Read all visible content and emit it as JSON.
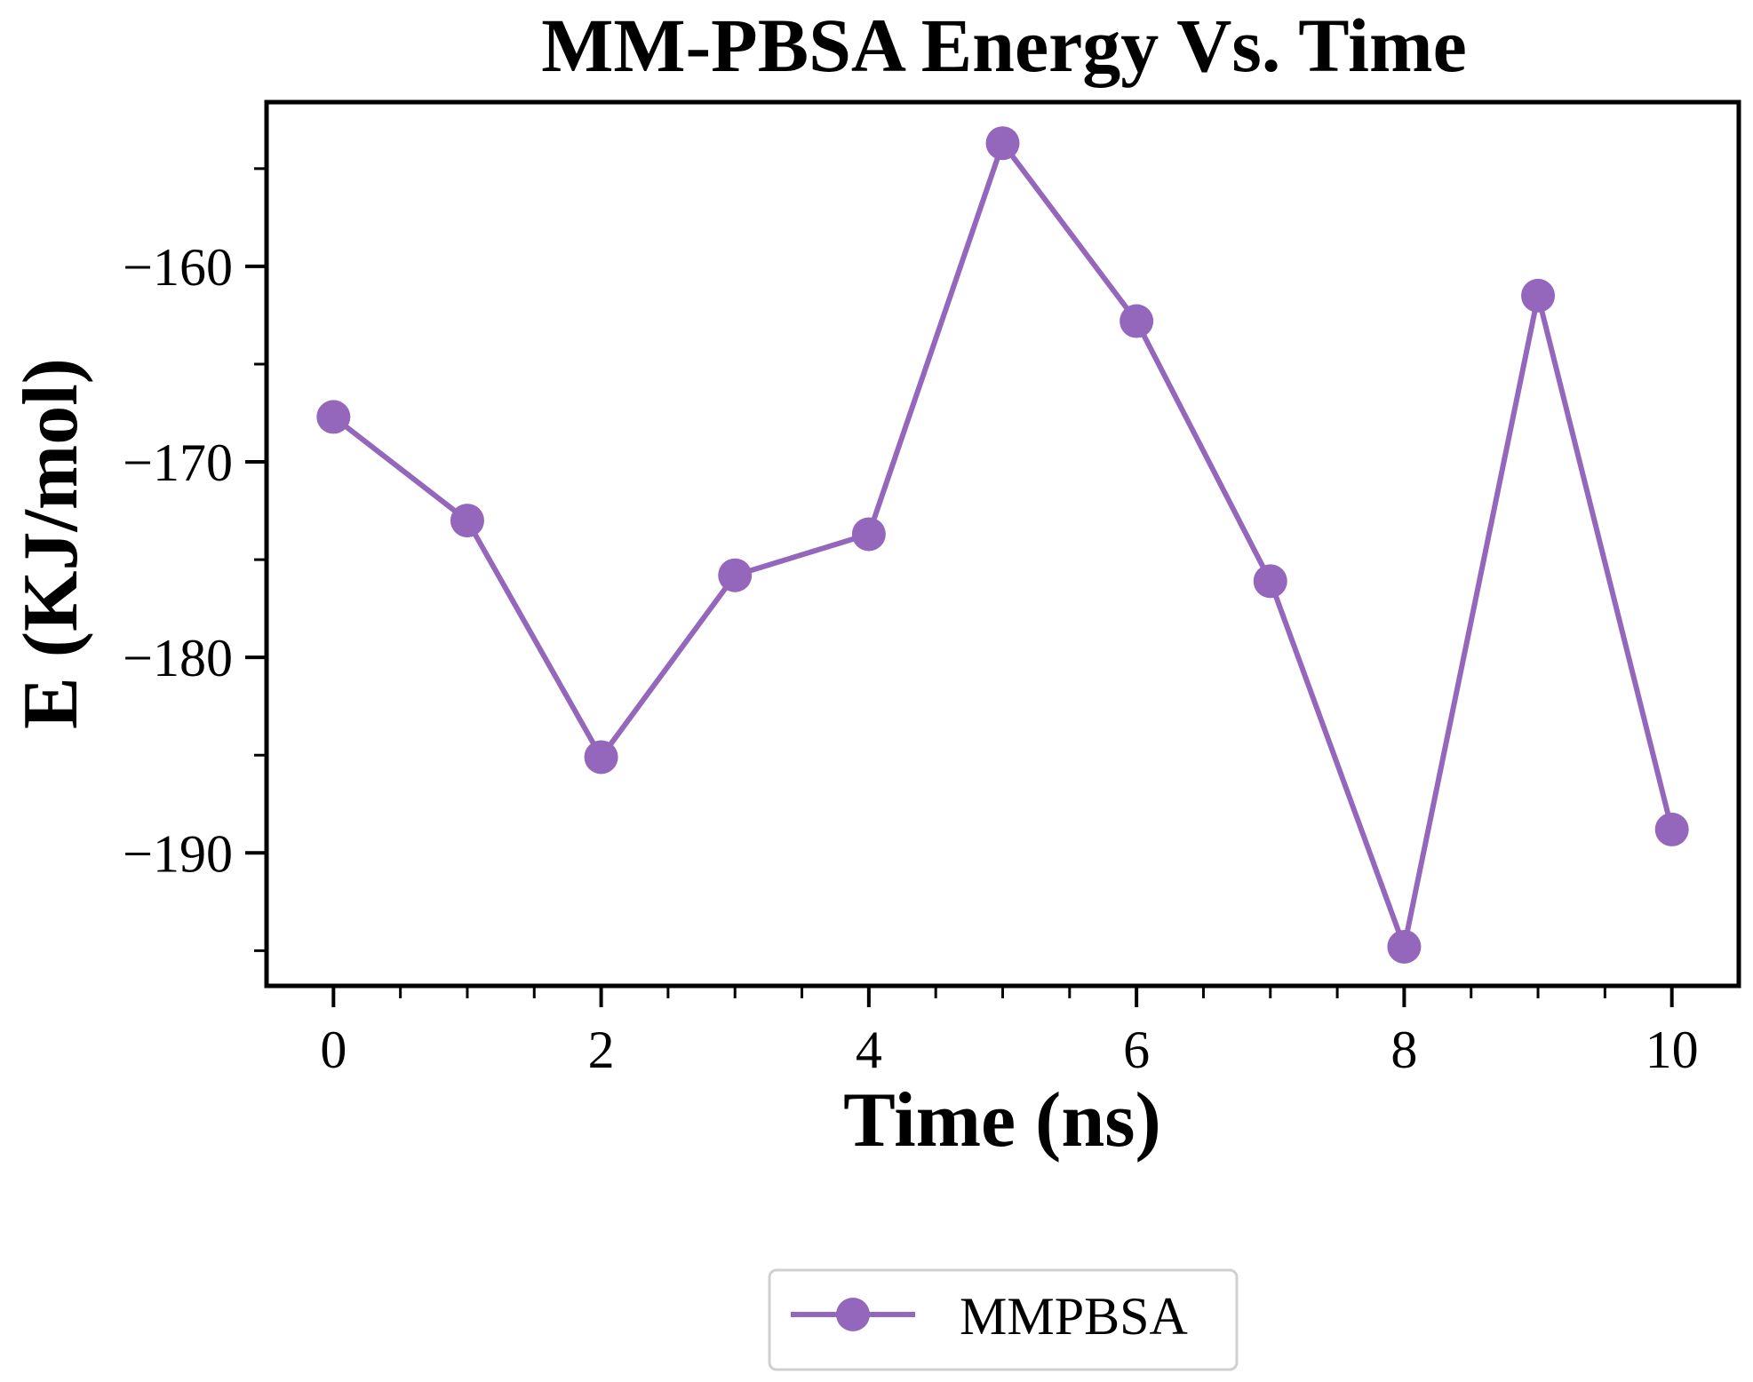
{
  "chart_data": {
    "type": "line",
    "title": "MM-PBSA Energy Vs. Time",
    "xlabel": "Time (ns)",
    "ylabel": "E (KJ/mol)",
    "xlim": [
      -0.5,
      10.5
    ],
    "ylim": [
      -196.8,
      -151.6
    ],
    "xticks": [
      0,
      2,
      4,
      6,
      8,
      10
    ],
    "xtick_labels": [
      "0",
      "2",
      "4",
      "6",
      "8",
      "10"
    ],
    "x_minor_step": 0.5,
    "yticks": [
      -160,
      -170,
      -180,
      -190
    ],
    "ytick_labels": [
      "−160",
      "−170",
      "−180",
      "−190"
    ],
    "y_minor_ticks": [
      -155,
      -165,
      -175,
      -185,
      -195
    ],
    "grid": false,
    "legend_position": "bottom-center",
    "series": [
      {
        "name": "MMPBSA",
        "color": "#9467bd",
        "marker": "circle",
        "x": [
          0,
          1,
          2,
          3,
          4,
          5,
          6,
          7,
          8,
          9,
          10
        ],
        "y": [
          -167.7,
          -173.0,
          -185.1,
          -175.8,
          -173.7,
          -153.7,
          -162.8,
          -176.1,
          -194.8,
          -161.5,
          -188.8
        ]
      }
    ]
  }
}
